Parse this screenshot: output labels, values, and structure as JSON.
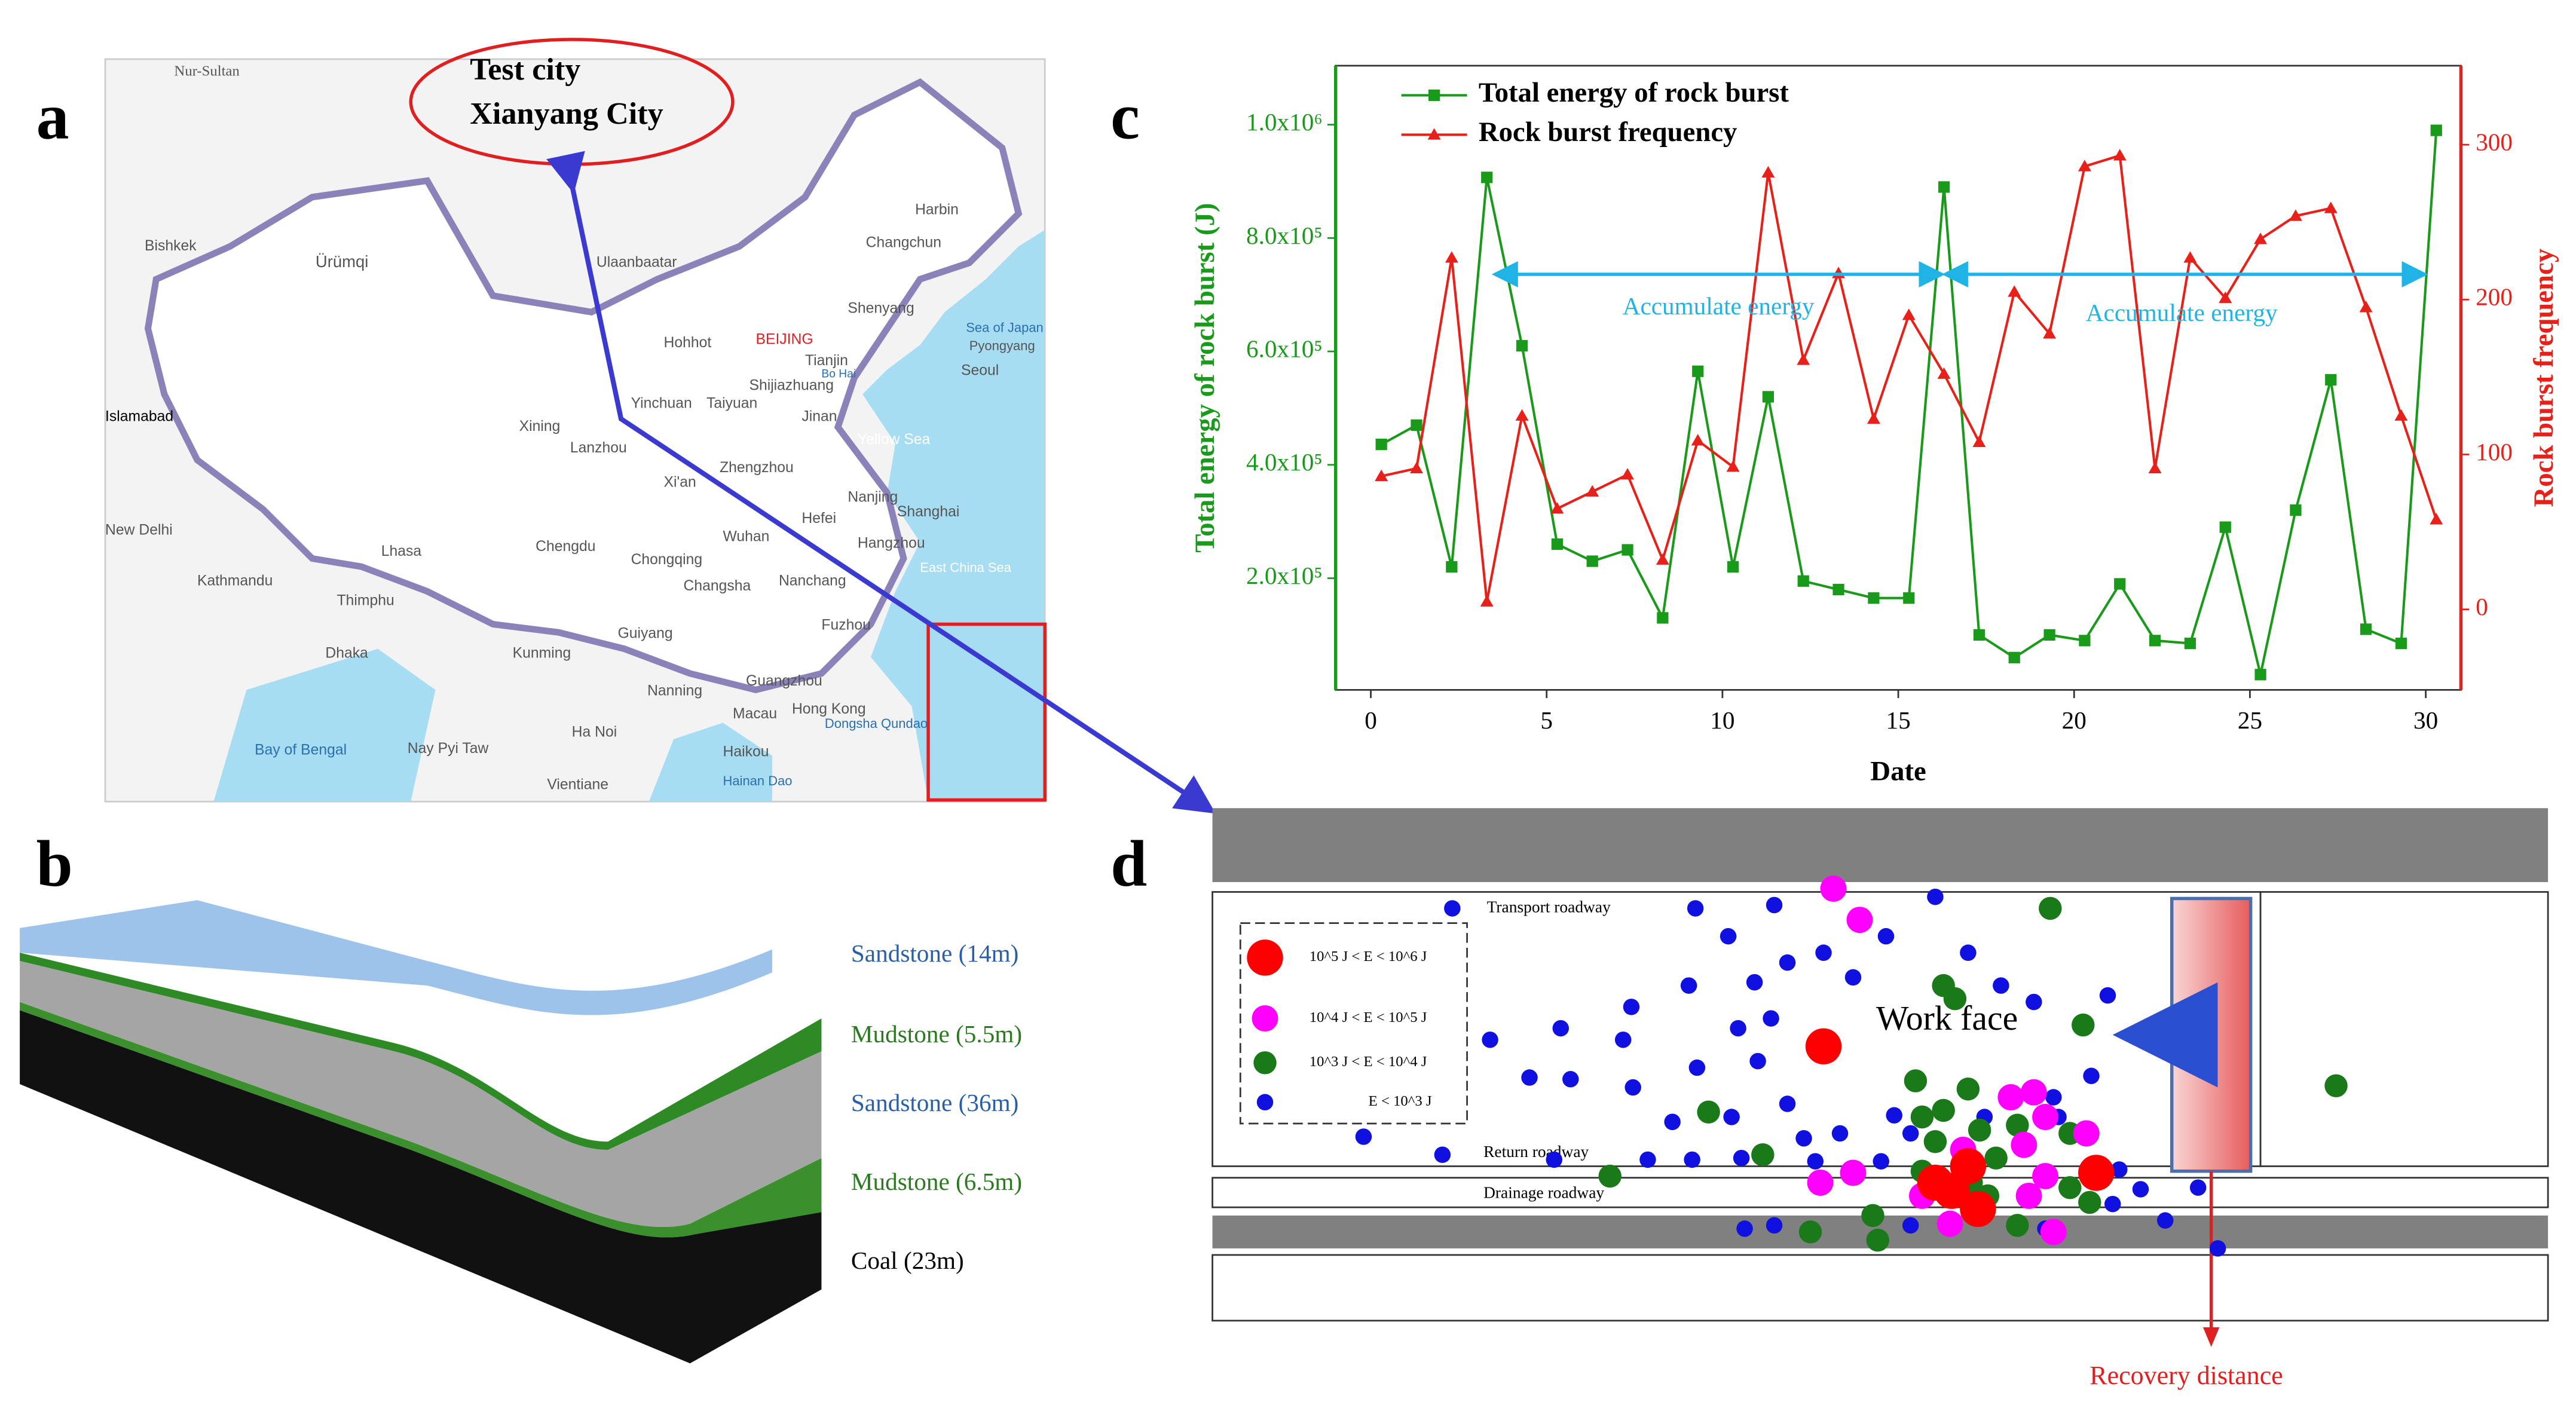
{
  "panel_labels": [
    "a",
    "b",
    "c",
    "d"
  ],
  "map": {
    "labels": [
      "Nur-Sultan",
      "Test city",
      "Xianyang City",
      "Bishkek",
      "Ürümqi",
      "Ulaanbaatar",
      "Harbin",
      "Changchun",
      "Shenyang",
      "Hohhot",
      "BEIJING",
      "Tianjin",
      "Pyongyang",
      "Sea of Japan",
      "Yinchuan",
      "Taiyuan",
      "Shijiazhuang",
      "Bo Hai",
      "Seoul",
      "Xining",
      "Lanzhou",
      "Jinan",
      "Yellow Sea",
      "Islamabad",
      "Zhengzhou",
      "Xi'an",
      "Nanjing",
      "Shanghai",
      "Hefei",
      "New Delhi",
      "Chengdu",
      "Wuhan",
      "Hangzhou",
      "Lhasa",
      "Chongqing",
      "Changsha",
      "Nanchang",
      "East China Sea",
      "Kathmandu",
      "Thimphu",
      "Fuzhou",
      "Guiyang",
      "Kunming",
      "Dhaka",
      "Guangzhou",
      "Nanning",
      "Hong Kong",
      "Macau",
      "Bay of Bengal",
      "Nay Pyi Taw",
      "Ha Noi",
      "Haikou",
      "Dongsha Qundao",
      "Vientiane",
      "Hainan Dao"
    ]
  },
  "layers": [
    "Sandstone (14m)",
    "Mudstone (5.5m)",
    "Sandstone (36m)",
    "Mudstone  (6.5m)",
    "Coal (23m)"
  ],
  "diagram": {
    "roadways": [
      "Transport roadway",
      "Return roadway",
      "Drainage roadway"
    ],
    "work_face": "Work face",
    "legend": [
      "10^5 J < E < 10^6 J",
      "10^4 J < E < 10^5 J",
      "10^3 J < E < 10^4 J",
      "E < 10^3 J"
    ],
    "recovery": "Recovery distance"
  },
  "chart_data": {
    "type": "line",
    "xlabel": "Date",
    "ylabel": "Total energy of rock burst (J)",
    "y2label": "Rock burst frequency",
    "x": [
      0.3,
      1.3,
      2.3,
      3.3,
      4.3,
      5.3,
      6.3,
      7.3,
      8.3,
      9.3,
      10.3,
      11.3,
      12.3,
      13.3,
      14.3,
      15.3,
      16.3,
      17.3,
      18.3,
      19.3,
      20.3,
      21.3,
      22.3,
      23.3,
      24.3,
      25.3,
      26.3,
      27.3,
      28.3,
      29.3,
      30.3
    ],
    "series": [
      {
        "name": "Total energy of rock burst",
        "color": "#1a9a1a",
        "marker": "square",
        "axis": "y",
        "values": [
          436000,
          470000,
          220000,
          907000,
          610000,
          260000,
          230000,
          250000,
          130000,
          565000,
          220000,
          520000,
          195000,
          180000,
          165000,
          165000,
          890000,
          100000,
          60000,
          100000,
          90000,
          190000,
          90000,
          85000,
          290000,
          30000,
          320000,
          550000,
          110000,
          85000,
          990000
        ]
      },
      {
        "name": "Rock burst frequency",
        "color": "#e8201a",
        "marker": "triangle",
        "axis": "y2",
        "values": [
          86,
          91,
          227,
          5,
          125,
          65,
          76,
          87,
          32,
          109,
          92,
          282,
          161,
          217,
          123,
          190,
          152,
          108,
          205,
          178,
          286,
          293,
          91,
          227,
          201,
          239,
          254,
          259,
          195,
          125,
          58
        ]
      }
    ],
    "xlim": [
      -1,
      31
    ],
    "xticks": [
      0,
      5,
      10,
      15,
      20,
      25,
      30
    ],
    "ylim": [
      3000,
      1104000
    ],
    "yticks": [
      {
        "value": 200000,
        "label": "2.0x10⁵"
      },
      {
        "value": 400000,
        "label": "4.0x10⁵"
      },
      {
        "value": 600000,
        "label": "6.0x10⁵"
      },
      {
        "value": 800000,
        "label": "8.0x10⁵"
      },
      {
        "value": 1000000,
        "label": "1.0x10⁶"
      }
    ],
    "y2lim": [
      -52,
      351
    ],
    "y2ticks": [
      0,
      100,
      200,
      300
    ],
    "annotations": [
      "Accumulate energy",
      "Accumulate energy"
    ]
  }
}
